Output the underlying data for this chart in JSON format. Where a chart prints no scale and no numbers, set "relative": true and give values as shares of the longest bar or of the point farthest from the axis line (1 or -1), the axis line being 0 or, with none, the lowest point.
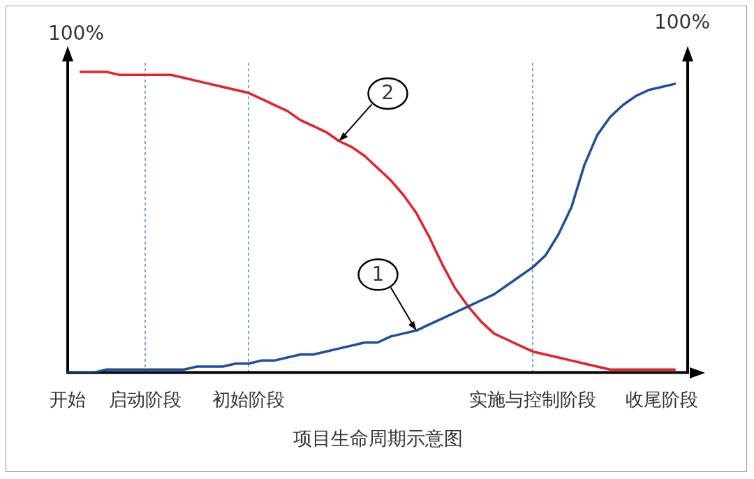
{
  "chart_data": {
    "type": "line",
    "relative": true,
    "title": "项目生命周期示意图",
    "ylabel": "100%",
    "y2label": "100%",
    "categories": [
      "开始",
      null,
      null,
      null,
      null,
      null,
      "启动阶段",
      null,
      null,
      null,
      null,
      null,
      null,
      null,
      "初始阶段",
      null,
      null,
      null,
      null,
      null,
      null,
      null,
      null,
      null,
      null,
      null,
      null,
      null,
      null,
      null,
      null,
      null,
      null,
      null,
      null,
      null,
      "实施与控制阶段",
      null,
      null,
      null,
      null,
      null,
      null,
      null,
      null,
      null,
      "收尾阶段",
      null,
      null
    ],
    "series": [
      {
        "name": "1",
        "color": "#1f4e9e",
        "values": [
          0,
          0,
          0,
          0.01,
          0.01,
          0.01,
          0.01,
          0.01,
          0.01,
          0.01,
          0.02,
          0.02,
          0.02,
          0.03,
          0.03,
          0.04,
          0.04,
          0.05,
          0.06,
          0.06,
          0.07,
          0.08,
          0.09,
          0.1,
          0.1,
          0.12,
          0.13,
          0.14,
          0.16,
          0.18,
          0.2,
          0.22,
          0.24,
          0.26,
          0.29,
          0.32,
          0.35,
          0.39,
          0.46,
          0.55,
          0.69,
          0.79,
          0.85,
          0.89,
          0.92,
          0.94,
          0.95,
          0.96,
          null
        ]
      },
      {
        "name": "2",
        "color": "#e8202a",
        "values": [
          null,
          1,
          1,
          1,
          0.99,
          0.99,
          0.99,
          0.99,
          0.99,
          0.98,
          0.97,
          0.96,
          0.95,
          0.94,
          0.93,
          0.91,
          0.89,
          0.87,
          0.84,
          0.82,
          0.8,
          0.77,
          0.75,
          0.72,
          0.68,
          0.64,
          0.59,
          0.53,
          0.45,
          0.36,
          0.28,
          0.22,
          0.17,
          0.13,
          0.11,
          0.09,
          0.07,
          0.06,
          0.05,
          0.04,
          0.03,
          0.02,
          0.01,
          0.01,
          0.01,
          0.01,
          0.01,
          0.01,
          null
        ]
      }
    ],
    "ref_lines": [
      {
        "axis": "x",
        "value": "启动阶段",
        "color": "#2e75b6",
        "line_style": "dashed"
      },
      {
        "axis": "x",
        "value": "初始阶段",
        "color": "#2e75b6",
        "line_style": "dashed"
      },
      {
        "axis": "x",
        "value": "实施与控制阶段",
        "color": "#2e75b6",
        "line_style": "dashed"
      }
    ],
    "grid": false,
    "legend": false,
    "marker": "none",
    "line_style": "solid"
  }
}
